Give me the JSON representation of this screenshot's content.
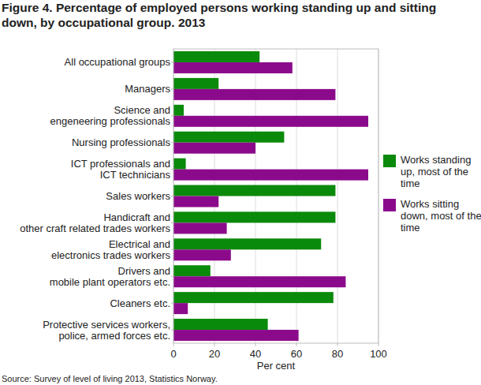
{
  "chart_data": {
    "type": "bar",
    "orientation": "horizontal",
    "title": "Figure 4. Percentage of employed persons working standing up and sitting down, by occupational group. 2013",
    "x_label": "Per cent",
    "source": "Source: Survey of level of living 2013, Statistics Norway.",
    "categories": [
      "All occupational groups",
      "Managers",
      "Science and\nengeneering professionals",
      "Nursing professionals",
      "ICT professionals and\nICT technicians",
      "Sales workers",
      "Handicraft and\nother craft related trades workers",
      "Electrical and\nelectronics trades workers",
      "Drivers and\nmobile plant operators etc.",
      "Cleaners etc.",
      "Protective services workers,\npolice, armed forces etc."
    ],
    "series": [
      {
        "name": "Works standing up, most of the time",
        "color": "#0a8a0a",
        "values": [
          42,
          22,
          5,
          54,
          6,
          79,
          79,
          72,
          18,
          78,
          46
        ]
      },
      {
        "name": "Works sitting down, most of the time",
        "color": "#8b0a8b",
        "values": [
          58,
          79,
          95,
          40,
          95,
          22,
          26,
          28,
          84,
          7,
          61
        ]
      }
    ],
    "xlim": [
      0,
      100
    ],
    "xticks": [
      0,
      20,
      40,
      60,
      80,
      100
    ],
    "grid": true,
    "legend": "right"
  }
}
